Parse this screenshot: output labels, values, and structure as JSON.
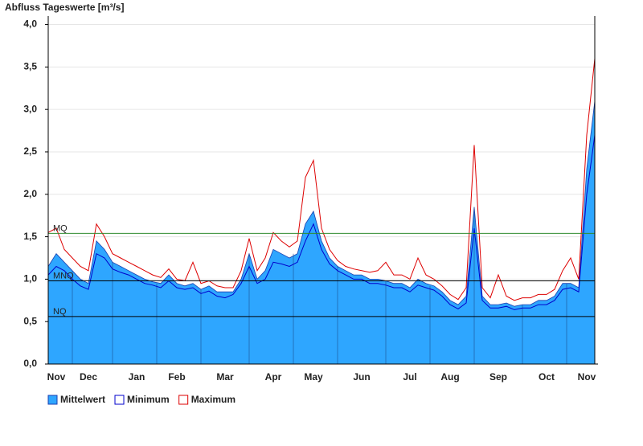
{
  "chart_data": {
    "type": "hydrograph",
    "title": "Abfluss Tageswerte [m³/s]",
    "categories": [
      null,
      "Nov",
      null,
      null,
      null,
      "Dec",
      null,
      null,
      null,
      null,
      null,
      "Jan",
      null,
      null,
      null,
      null,
      "Feb",
      null,
      null,
      null,
      null,
      null,
      "Mar",
      null,
      null,
      null,
      null,
      null,
      "Apr",
      null,
      null,
      null,
      null,
      "May",
      null,
      null,
      null,
      null,
      null,
      "Jun",
      null,
      null,
      null,
      null,
      null,
      "Jul",
      null,
      null,
      null,
      null,
      "Aug",
      null,
      null,
      null,
      null,
      null,
      "Sep",
      null,
      null,
      null,
      null,
      null,
      "Oct",
      null,
      null,
      null,
      null,
      "Nov",
      null
    ],
    "series": [
      {
        "name": "Mittelwert",
        "color": "#2ea6ff",
        "fill": true,
        "values": [
          1.15,
          1.3,
          1.2,
          1.1,
          1.0,
          0.95,
          1.45,
          1.35,
          1.2,
          1.15,
          1.1,
          1.05,
          1.0,
          0.97,
          0.95,
          1.05,
          0.95,
          0.92,
          0.95,
          0.88,
          0.92,
          0.85,
          0.85,
          0.85,
          1.0,
          1.3,
          1.0,
          1.1,
          1.35,
          1.3,
          1.25,
          1.3,
          1.65,
          1.8,
          1.45,
          1.25,
          1.15,
          1.1,
          1.05,
          1.05,
          1.0,
          1.0,
          0.98,
          0.95,
          0.95,
          0.9,
          1.0,
          0.95,
          0.92,
          0.85,
          0.75,
          0.7,
          0.8,
          1.85,
          0.8,
          0.7,
          0.7,
          0.72,
          0.68,
          0.7,
          0.7,
          0.75,
          0.75,
          0.8,
          0.95,
          0.95,
          0.9,
          2.3,
          3.1
        ]
      },
      {
        "name": "Minimum",
        "color": "#0000cc",
        "values": [
          1.05,
          1.15,
          1.1,
          1.0,
          0.92,
          0.88,
          1.3,
          1.25,
          1.12,
          1.08,
          1.05,
          1.0,
          0.95,
          0.93,
          0.9,
          0.98,
          0.9,
          0.88,
          0.9,
          0.83,
          0.86,
          0.8,
          0.78,
          0.82,
          0.95,
          1.15,
          0.95,
          1.0,
          1.2,
          1.18,
          1.15,
          1.2,
          1.45,
          1.65,
          1.35,
          1.18,
          1.1,
          1.05,
          1.0,
          1.0,
          0.95,
          0.95,
          0.93,
          0.9,
          0.9,
          0.85,
          0.93,
          0.9,
          0.87,
          0.8,
          0.7,
          0.65,
          0.72,
          1.6,
          0.75,
          0.66,
          0.66,
          0.68,
          0.64,
          0.66,
          0.66,
          0.7,
          0.7,
          0.75,
          0.88,
          0.9,
          0.85,
          2.0,
          2.7
        ]
      },
      {
        "name": "Maximum",
        "color": "#dd0000",
        "values": [
          1.55,
          1.6,
          1.35,
          1.25,
          1.15,
          1.1,
          1.65,
          1.5,
          1.3,
          1.25,
          1.2,
          1.15,
          1.1,
          1.05,
          1.02,
          1.12,
          1.0,
          0.98,
          1.2,
          0.95,
          0.98,
          0.92,
          0.9,
          0.9,
          1.1,
          1.48,
          1.1,
          1.25,
          1.55,
          1.45,
          1.38,
          1.45,
          2.2,
          2.4,
          1.6,
          1.35,
          1.22,
          1.15,
          1.12,
          1.1,
          1.08,
          1.1,
          1.2,
          1.05,
          1.05,
          1.0,
          1.25,
          1.05,
          1.0,
          0.92,
          0.82,
          0.76,
          0.9,
          2.58,
          0.9,
          0.78,
          1.05,
          0.8,
          0.75,
          0.78,
          0.78,
          0.82,
          0.82,
          0.88,
          1.1,
          1.25,
          1.0,
          2.7,
          3.6
        ]
      }
    ],
    "reference_lines": [
      {
        "label": "MQ",
        "value": 1.54,
        "color": "#2e8b2e"
      },
      {
        "label": "MNQ",
        "value": 0.98,
        "color": "#000000"
      },
      {
        "label": "NQ",
        "value": 0.56,
        "color": "#000000"
      }
    ],
    "ylim": [
      0,
      4.1
    ],
    "yticks": [
      {
        "value": 0,
        "label": "0,0"
      },
      {
        "value": 0.5,
        "label": "0,5"
      },
      {
        "value": 1,
        "label": "1,0"
      },
      {
        "value": 1.5,
        "label": "1,5"
      },
      {
        "value": 2,
        "label": "2,0"
      },
      {
        "value": 2.5,
        "label": "2,5"
      },
      {
        "value": 3,
        "label": "3,0"
      },
      {
        "value": 3.5,
        "label": "3,5"
      },
      {
        "value": 4,
        "label": "4,0"
      }
    ],
    "grid": true
  }
}
